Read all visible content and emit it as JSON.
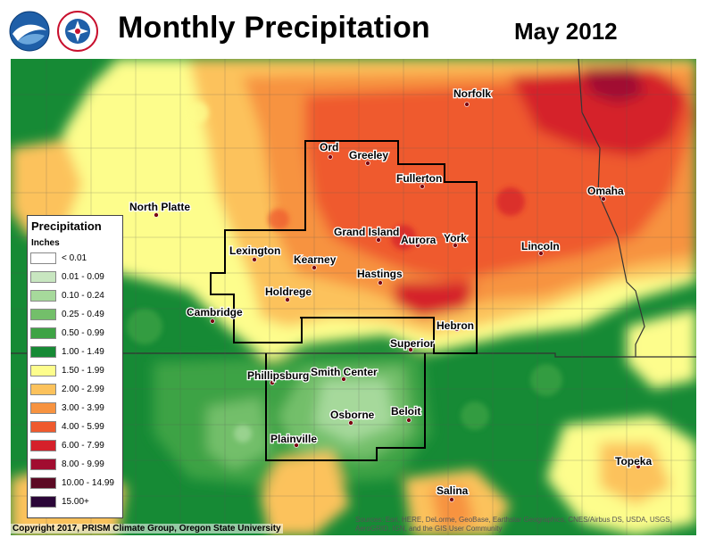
{
  "header": {
    "title": "Monthly Precipitation",
    "period": "May 2012",
    "logos": [
      "noaa-logo",
      "national-weather-service-logo"
    ]
  },
  "legend": {
    "title": "Precipitation",
    "units": "Inches",
    "items": [
      {
        "label": "< 0.01",
        "color": "#ffffff"
      },
      {
        "label": "0.01 - 0.09",
        "color": "#c8e6c0"
      },
      {
        "label": "0.10 - 0.24",
        "color": "#a6d99b"
      },
      {
        "label": "0.25 - 0.49",
        "color": "#73bf6a"
      },
      {
        "label": "0.50 - 0.99",
        "color": "#3ea345"
      },
      {
        "label": "1.00 - 1.49",
        "color": "#168a35"
      },
      {
        "label": "1.50 - 1.99",
        "color": "#fdfd8c"
      },
      {
        "label": "2.00 - 2.99",
        "color": "#fcc25c"
      },
      {
        "label": "3.00 - 3.99",
        "color": "#f79340"
      },
      {
        "label": "4.00 - 5.99",
        "color": "#ef5a2e"
      },
      {
        "label": "6.00 - 7.99",
        "color": "#d5202a"
      },
      {
        "label": "8.00 - 9.99",
        "color": "#a10d30"
      },
      {
        "label": "10.00 - 14.99",
        "color": "#5c0a24"
      },
      {
        "label": "15.00+",
        "color": "#2b0638"
      }
    ]
  },
  "cities": [
    {
      "name": "Norfolk"
    },
    {
      "name": "Ord"
    },
    {
      "name": "Greeley"
    },
    {
      "name": "Fullerton"
    },
    {
      "name": "North Platte"
    },
    {
      "name": "Omaha"
    },
    {
      "name": "Grand Island"
    },
    {
      "name": "Aurora"
    },
    {
      "name": "York"
    },
    {
      "name": "Lexington"
    },
    {
      "name": "Kearney"
    },
    {
      "name": "Lincoln"
    },
    {
      "name": "Hastings"
    },
    {
      "name": "Holdrege"
    },
    {
      "name": "Cambridge"
    },
    {
      "name": "Hebron"
    },
    {
      "name": "Superior"
    },
    {
      "name": "Phillipsburg"
    },
    {
      "name": "Smith Center"
    },
    {
      "name": "Beloit"
    },
    {
      "name": "Osborne"
    },
    {
      "name": "Plainville"
    },
    {
      "name": "Topeka"
    },
    {
      "name": "Salina"
    }
  ],
  "footer": {
    "copyright": "Copyright 2017, PRISM Climate Group, Oregon State University",
    "sources": "Sources: Esri, HERE, DeLorme, GeoBase, Earthstar Geographics, CNES/Airbus DS, USDA, USGS, AeroGRID, IGN, and the GIS User Community"
  }
}
